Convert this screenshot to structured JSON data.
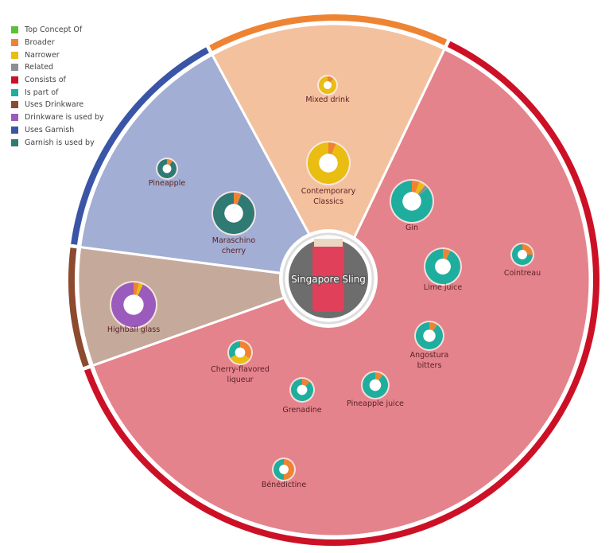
{
  "legend": [
    {
      "label": "Top Concept Of",
      "color": "#5cbf3a"
    },
    {
      "label": "Broader",
      "color": "#ee8433"
    },
    {
      "label": "Narrower",
      "color": "#e9bd12"
    },
    {
      "label": "Related",
      "color": "#8e8f96"
    },
    {
      "label": "Consists of",
      "color": "#cc1126"
    },
    {
      "label": "Is part of",
      "color": "#1fae9d"
    },
    {
      "label": "Uses Drinkware",
      "color": "#8c4a2e"
    },
    {
      "label": "Drinkware is used by",
      "color": "#9b5bbd"
    },
    {
      "label": "Uses Garnish",
      "color": "#3b55a6"
    },
    {
      "label": "Garnish is used by",
      "color": "#2f7a72"
    }
  ],
  "center": {
    "label": "Singapore Sling"
  },
  "sectors": [
    {
      "relation": "Broader",
      "fill": "#f4c19f",
      "ring": "#ee8433"
    },
    {
      "relation": "Uses Garnish",
      "fill": "#a2aed3",
      "ring": "#3b55a6"
    },
    {
      "relation": "Uses Drinkware",
      "fill": "#c5aa9c",
      "ring": "#8c4a2e"
    },
    {
      "relation": "Consists of",
      "fill": "#e4838c",
      "ring": "#cc1126"
    }
  ],
  "nodes": [
    {
      "label": "Mixed drink",
      "segments": [
        [
          "#ee8433",
          0.12
        ],
        [
          "#e9bd12",
          0.88
        ]
      ]
    },
    {
      "label": "Contemporary Classics",
      "segments": [
        [
          "#ee8433",
          0.06
        ],
        [
          "#e9bd12",
          0.94
        ]
      ]
    },
    {
      "label": "Pineapple",
      "segments": [
        [
          "#ee8433",
          0.1
        ],
        [
          "#2f7a72",
          0.9
        ]
      ]
    },
    {
      "label": "Maraschino cherry",
      "segments": [
        [
          "#ee8433",
          0.06
        ],
        [
          "#2f7a72",
          0.94
        ]
      ]
    },
    {
      "label": "Highball glass",
      "segments": [
        [
          "#ee8433",
          0.04
        ],
        [
          "#e9bd12",
          0.03
        ],
        [
          "#9b5bbd",
          0.93
        ]
      ]
    },
    {
      "label": "Gin",
      "segments": [
        [
          "#ee8433",
          0.06
        ],
        [
          "#e9bd12",
          0.05
        ],
        [
          "#8e8f96",
          0.03
        ],
        [
          "#1fae9d",
          0.86
        ]
      ]
    },
    {
      "label": "Lime juice",
      "segments": [
        [
          "#ee8433",
          0.07
        ],
        [
          "#1fae9d",
          0.93
        ]
      ]
    },
    {
      "label": "Cointreau",
      "segments": [
        [
          "#ee8433",
          0.25
        ],
        [
          "#1fae9d",
          0.75
        ]
      ]
    },
    {
      "label": "Angostura bitters",
      "segments": [
        [
          "#ee8433",
          0.1
        ],
        [
          "#1fae9d",
          0.9
        ]
      ]
    },
    {
      "label": "Cherry-flavored liqueur",
      "segments": [
        [
          "#ee8433",
          0.34
        ],
        [
          "#e9bd12",
          0.33
        ],
        [
          "#1fae9d",
          0.33
        ]
      ]
    },
    {
      "label": "Grenadine",
      "segments": [
        [
          "#ee8433",
          0.12
        ],
        [
          "#1fae9d",
          0.88
        ]
      ]
    },
    {
      "label": "Pineapple juice",
      "segments": [
        [
          "#ee8433",
          0.1
        ],
        [
          "#1fae9d",
          0.9
        ]
      ]
    },
    {
      "label": "Bénédictine",
      "segments": [
        [
          "#ee8433",
          0.5
        ],
        [
          "#1fae9d",
          0.5
        ]
      ]
    }
  ]
}
